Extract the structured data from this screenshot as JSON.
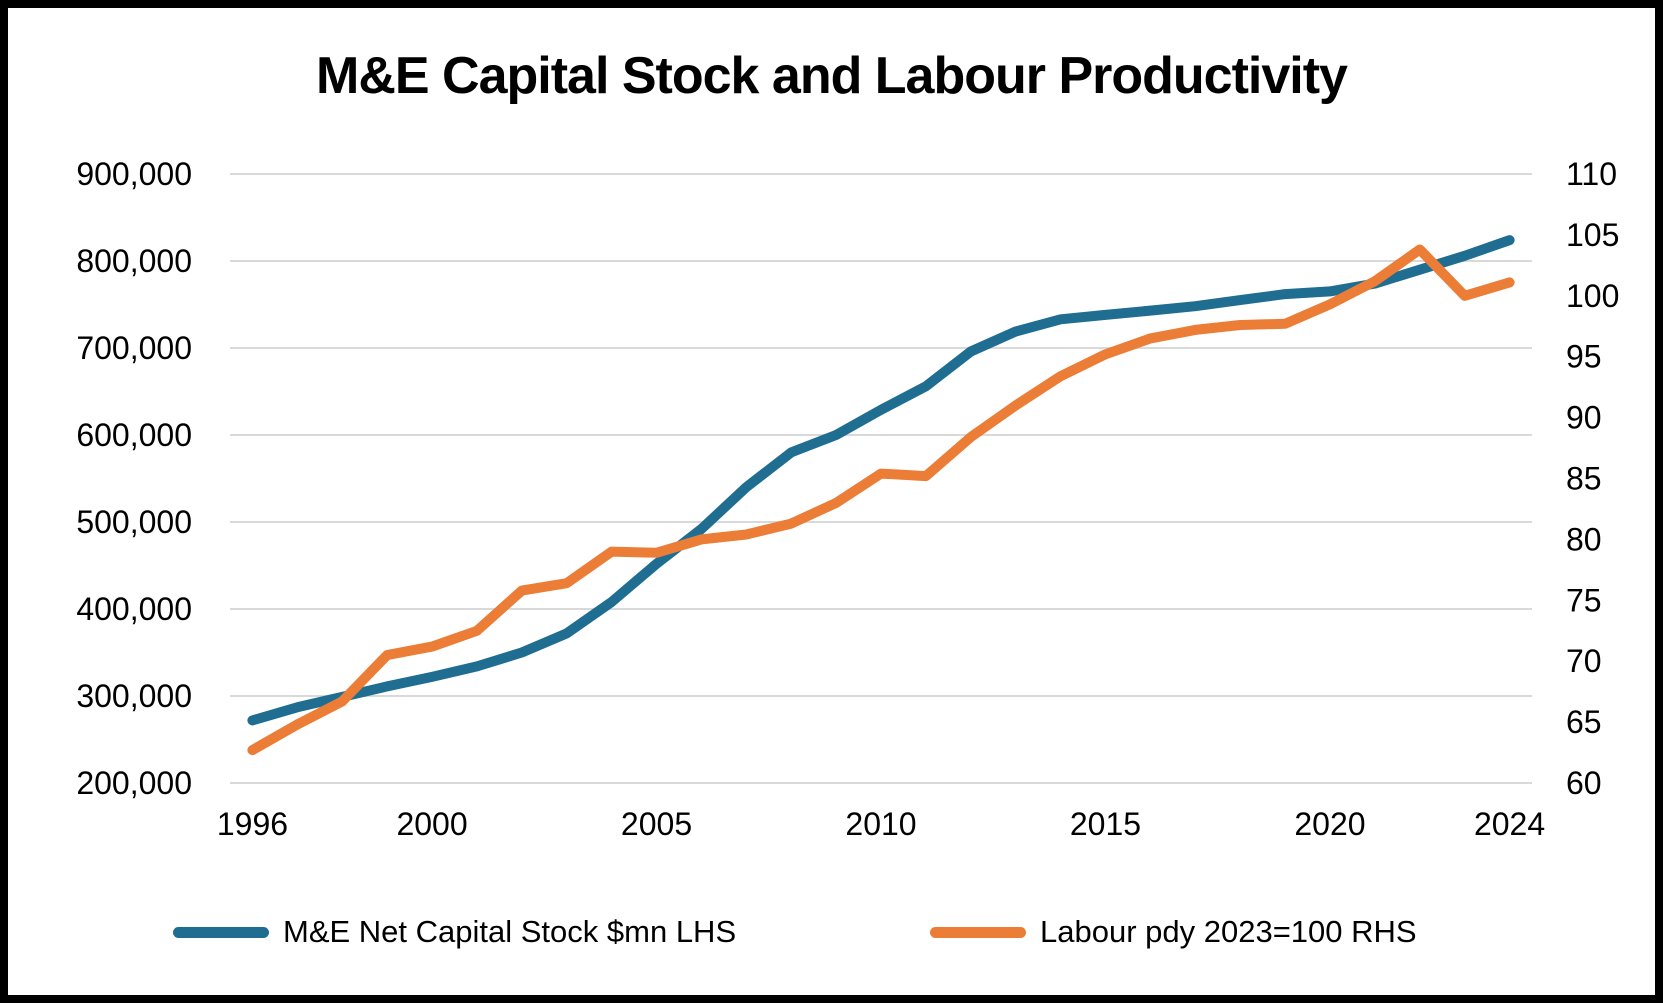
{
  "title": "M&E Capital Stock and Labour Productivity",
  "legend": [
    {
      "label": "M&E Net Capital Stock $mn LHS",
      "color": "#1F6D91"
    },
    {
      "label": "Labour pdy 2023=100 RHS",
      "color": "#EB7D36"
    }
  ],
  "colors": {
    "gridline": "#D9D9D9",
    "text": "#000000",
    "background": "#FFFFFF",
    "border": "#000000",
    "capital_stock_line": "#1F6D91",
    "labour_pdy_line": "#EB7D36"
  },
  "chart_data": {
    "type": "line",
    "title": "M&E Capital Stock and Labour Productivity",
    "x": [
      1996,
      1997,
      1998,
      1999,
      2000,
      2001,
      2002,
      2003,
      2004,
      2005,
      2006,
      2007,
      2008,
      2009,
      2010,
      2011,
      2012,
      2013,
      2014,
      2015,
      2016,
      2017,
      2018,
      2019,
      2020,
      2021,
      2022,
      2023,
      2024
    ],
    "series": [
      {
        "name": "M&E Net Capital Stock $mn LHS",
        "axis": "left",
        "color": "#1F6D91",
        "values": [
          272000,
          287000,
          299000,
          311000,
          322000,
          334000,
          350000,
          372000,
          408000,
          452000,
          492000,
          540000,
          580000,
          600000,
          629000,
          656000,
          696000,
          719000,
          733000,
          738000,
          743000,
          748000,
          755000,
          762000,
          765000,
          774000,
          790000,
          806000,
          824000
        ]
      },
      {
        "name": "Labour pdy 2023=100 RHS",
        "axis": "right",
        "color": "#EB7D36",
        "values": [
          62.7,
          64.8,
          66.7,
          70.5,
          71.2,
          72.5,
          75.8,
          76.4,
          79.0,
          78.9,
          80.0,
          80.4,
          81.3,
          83.0,
          85.4,
          85.2,
          88.4,
          91.0,
          93.4,
          95.2,
          96.5,
          97.2,
          97.6,
          97.7,
          99.3,
          101.2,
          103.8,
          100.0,
          101.1
        ]
      }
    ],
    "left_axis": {
      "min": 200000,
      "max": 900000,
      "tick_step": 100000,
      "tick_labels": [
        "900,000",
        "800,000",
        "700,000",
        "600,000",
        "500,000",
        "400,000",
        "300,000",
        "200,000"
      ]
    },
    "right_axis": {
      "min": 60,
      "max": 110,
      "tick_step": 5,
      "tick_labels": [
        "110",
        "105",
        "100",
        "95",
        "90",
        "85",
        "80",
        "75",
        "70",
        "65",
        "60"
      ]
    },
    "x_tick_years": [
      1996,
      2000,
      2005,
      2010,
      2015,
      2020,
      2024
    ],
    "grid": "horizontal-only",
    "legend_position": "bottom"
  }
}
